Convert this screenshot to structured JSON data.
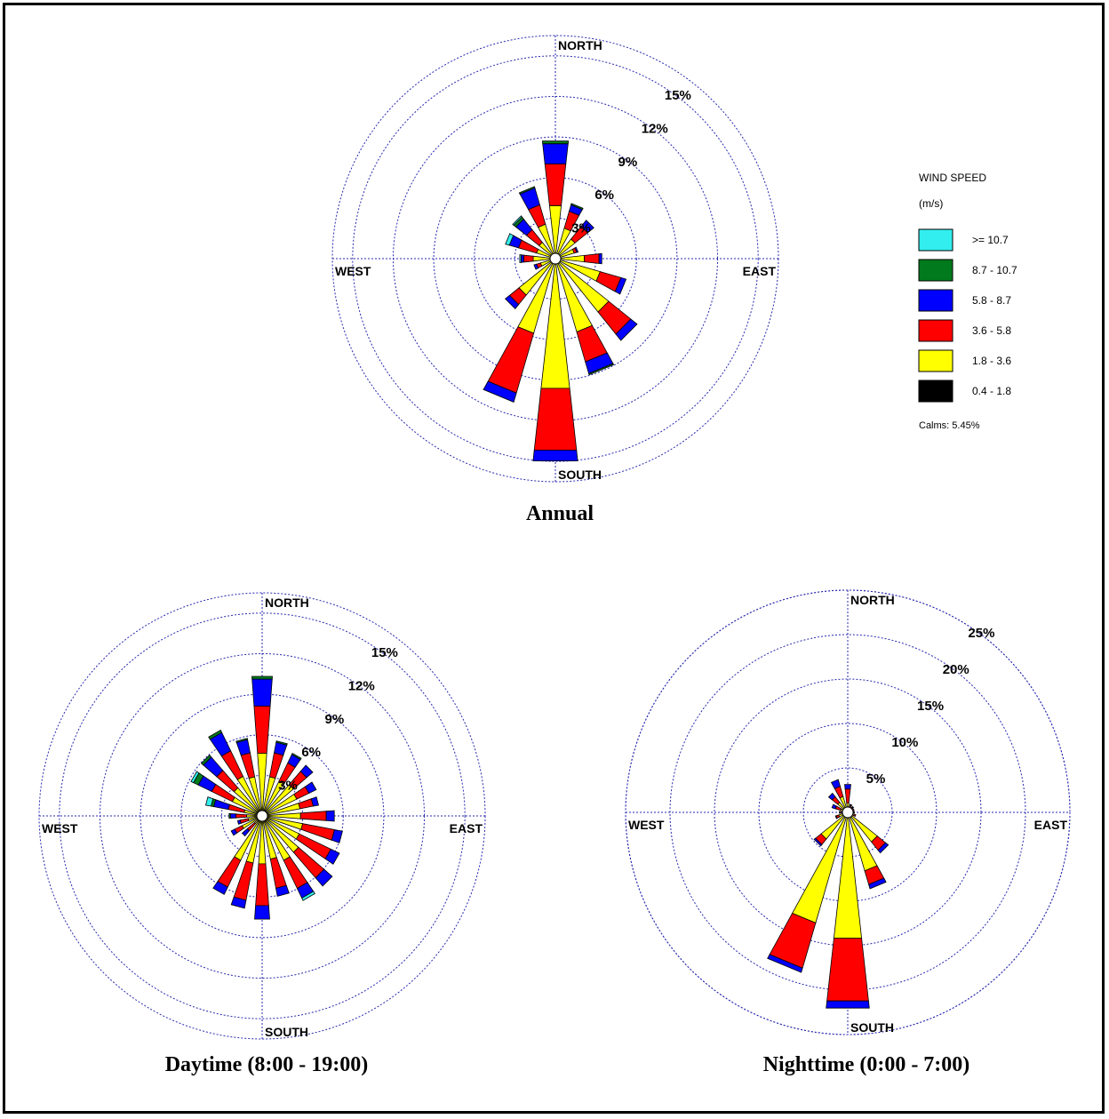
{
  "legend": {
    "title": "WIND SPEED",
    "unit": "(m/s)",
    "classes": [
      {
        "label": ">= 10.7",
        "color": "#33eeee"
      },
      {
        "label": "8.7 - 10.7",
        "color": "#007a1c"
      },
      {
        "label": "5.8 -  8.7",
        "color": "#0000ff"
      },
      {
        "label": "3.6 -  5.8",
        "color": "#ff0000"
      },
      {
        "label": "1.8 -  3.6",
        "color": "#ffff00"
      },
      {
        "label": "0.4 -  1.8",
        "color": "#000000"
      }
    ],
    "calms": "Calms: 5.45%"
  },
  "directions": {
    "north": "NORTH",
    "south": "SOUTH",
    "east": "EAST",
    "west": "WEST"
  },
  "chart_data": [
    {
      "type": "wind-rose",
      "title": "Annual",
      "ring_labels": [
        "3%",
        "6%",
        "9%",
        "12%",
        "15%"
      ],
      "ring_values": [
        3,
        6,
        9,
        12,
        15
      ],
      "outer_ring": 16.5,
      "sectors": 16,
      "speed_classes": [
        "0.4-1.8",
        "1.8-3.6",
        "3.6-5.8",
        "5.8-8.7",
        "8.7-10.7",
        ">=10.7"
      ],
      "bars": [
        {
          "dir": "N",
          "values": [
            0,
            3.7,
            3.1,
            1.5,
            0.2,
            0
          ]
        },
        {
          "dir": "NNE",
          "values": [
            0,
            2.1,
            1.3,
            0.5,
            0.1,
            0
          ]
        },
        {
          "dir": "NE",
          "values": [
            0,
            1.6,
            1.2,
            0.6,
            0,
            0
          ]
        },
        {
          "dir": "ENE",
          "values": [
            0,
            1.2,
            0.2,
            0.1,
            0,
            0
          ]
        },
        {
          "dir": "E",
          "values": [
            0,
            1.9,
            1.1,
            0.2,
            0,
            0
          ]
        },
        {
          "dir": "ESE",
          "values": [
            0,
            3.2,
            1.6,
            0.4,
            0,
            0
          ]
        },
        {
          "dir": "SE",
          "values": [
            0,
            4.8,
            2.1,
            0.6,
            0,
            0
          ]
        },
        {
          "dir": "SSE",
          "values": [
            0,
            5.4,
            2.3,
            0.9,
            0.1,
            0
          ]
        },
        {
          "dir": "S",
          "values": [
            0,
            9.4,
            4.6,
            0.8,
            0,
            0
          ]
        },
        {
          "dir": "SSW",
          "values": [
            0,
            5.5,
            4.6,
            0.7,
            0,
            0
          ]
        },
        {
          "dir": "SW",
          "values": [
            0,
            3.2,
            0.9,
            0.4,
            0,
            0
          ]
        },
        {
          "dir": "WSW",
          "values": [
            0,
            0.9,
            0.3,
            0.2,
            0,
            0
          ]
        },
        {
          "dir": "W",
          "values": [
            0,
            1.4,
            0.7,
            0.2,
            0,
            0.1
          ]
        },
        {
          "dir": "WNW",
          "values": [
            0,
            1.2,
            1.4,
            0.7,
            0,
            0.3
          ]
        },
        {
          "dir": "NW",
          "values": [
            0,
            1.3,
            1.2,
            1.0,
            0.2,
            0.1
          ]
        },
        {
          "dir": "NNW",
          "values": [
            0,
            2.4,
            1.5,
            1.3,
            0.1,
            0
          ]
        }
      ]
    },
    {
      "type": "wind-rose",
      "title": "Daytime (8:00 - 19:00)",
      "ring_labels": [
        "3%",
        "6%",
        "9%",
        "12%",
        "15%"
      ],
      "ring_values": [
        3,
        6,
        9,
        12,
        15
      ],
      "outer_ring": 16.5,
      "sectors": 24,
      "speed_classes": [
        "0.4-1.8",
        "1.8-3.6",
        "3.6-5.8",
        "5.8-8.7",
        "8.7-10.7",
        ">=10.7"
      ],
      "bars": [
        {
          "dir": "0",
          "values": [
            0,
            4.4,
            3.5,
            2.0,
            0.2,
            0
          ]
        },
        {
          "dir": "15",
          "values": [
            0,
            2.7,
            1.8,
            0.8,
            0.1,
            0
          ]
        },
        {
          "dir": "30",
          "values": [
            0,
            2.6,
            1.5,
            0.7,
            0.1,
            0
          ]
        },
        {
          "dir": "45",
          "values": [
            0,
            2.8,
            1.3,
            0.6,
            0,
            0
          ]
        },
        {
          "dir": "60",
          "values": [
            0,
            2.6,
            1.0,
            0.6,
            0,
            0
          ]
        },
        {
          "dir": "75",
          "values": [
            0,
            2.6,
            1.0,
            0.4,
            0,
            0
          ]
        },
        {
          "dir": "90",
          "values": [
            0,
            2.6,
            1.9,
            0.6,
            0,
            0
          ]
        },
        {
          "dir": "105",
          "values": [
            0,
            2.8,
            2.4,
            0.6,
            0,
            0
          ]
        },
        {
          "dir": "120",
          "values": [
            0,
            2.8,
            2.6,
            0.7,
            0,
            0
          ]
        },
        {
          "dir": "135",
          "values": [
            0,
            3.3,
            2.5,
            0.8,
            0,
            0
          ]
        },
        {
          "dir": "150",
          "values": [
            0,
            3.4,
            2.3,
            0.8,
            0,
            0.2
          ]
        },
        {
          "dir": "165",
          "values": [
            0,
            3.0,
            2.2,
            0.6,
            0,
            0
          ]
        },
        {
          "dir": "180",
          "values": [
            0,
            3.3,
            3.1,
            1.0,
            0,
            0
          ]
        },
        {
          "dir": "195",
          "values": [
            0,
            3.3,
            2.8,
            0.6,
            0,
            0
          ]
        },
        {
          "dir": "210",
          "values": [
            0,
            3.4,
            2.2,
            0.6,
            0,
            0
          ]
        },
        {
          "dir": "225",
          "values": [
            0,
            0.5,
            0.7,
            0.5,
            0,
            0
          ]
        },
        {
          "dir": "240",
          "values": [
            0,
            1.4,
            0.6,
            0.3,
            0,
            0
          ]
        },
        {
          "dir": "255",
          "values": [
            0,
            0.8,
            0.6,
            0.2,
            0,
            0
          ]
        },
        {
          "dir": "270",
          "values": [
            0,
            0.9,
            0.8,
            0.4,
            0.1,
            0
          ]
        },
        {
          "dir": "285",
          "values": [
            0,
            1.1,
            1.2,
            1.1,
            0.2,
            0.4
          ]
        },
        {
          "dir": "300",
          "values": [
            0,
            2.2,
            1.7,
            1.1,
            0.4,
            0.2
          ]
        },
        {
          "dir": "315",
          "values": [
            0,
            2.5,
            1.7,
            1.3,
            0.2,
            0
          ]
        },
        {
          "dir": "330",
          "values": [
            0,
            3.0,
            2.1,
            1.5,
            0.2,
            0
          ]
        },
        {
          "dir": "345",
          "values": [
            0,
            2.7,
            1.8,
            1.0,
            0.1,
            0
          ]
        }
      ]
    },
    {
      "type": "wind-rose",
      "title": "Nighttime (0:00 - 7:00)",
      "ring_labels": [
        "5%",
        "10%",
        "15%",
        "20%",
        "25%"
      ],
      "ring_values": [
        5,
        10,
        15,
        20,
        25
      ],
      "outer_ring": 25,
      "sectors": 16,
      "speed_classes": [
        "0.4-1.8",
        "1.8-3.6",
        "3.6-5.8",
        "5.8-8.7",
        "8.7-10.7",
        ">=10.7"
      ],
      "bars": [
        {
          "dir": "N",
          "values": [
            0,
            0.8,
            1.6,
            0.5,
            0,
            0
          ]
        },
        {
          "dir": "NNE",
          "values": [
            0,
            0.4,
            0.2,
            0.1,
            0,
            0
          ]
        },
        {
          "dir": "NE",
          "values": [
            0,
            0.3,
            0.2,
            0.1,
            0,
            0
          ]
        },
        {
          "dir": "ENE",
          "values": [
            0,
            0.4,
            0.1,
            0,
            0,
            0
          ]
        },
        {
          "dir": "E",
          "values": [
            0,
            0.4,
            0.1,
            0,
            0,
            0
          ]
        },
        {
          "dir": "ESE",
          "values": [
            0,
            0.5,
            0.2,
            0,
            0,
            0
          ]
        },
        {
          "dir": "SE",
          "values": [
            0,
            4.0,
            1.2,
            0.4,
            0,
            0
          ]
        },
        {
          "dir": "SSE",
          "values": [
            0,
            6.6,
            1.6,
            0.5,
            0,
            0
          ]
        },
        {
          "dir": "S",
          "values": [
            0,
            14.0,
            7.1,
            0.8,
            0,
            0
          ]
        },
        {
          "dir": "SSW",
          "values": [
            0,
            12.7,
            5.3,
            0.5,
            0,
            0
          ]
        },
        {
          "dir": "SW",
          "values": [
            0,
            3.6,
            0.8,
            0.2,
            0,
            0
          ]
        },
        {
          "dir": "WSW",
          "values": [
            0,
            0.8,
            0.3,
            0.1,
            0,
            0
          ]
        },
        {
          "dir": "W",
          "values": [
            0,
            0.4,
            0.2,
            0.1,
            0,
            0
          ]
        },
        {
          "dir": "WNW",
          "values": [
            0,
            0.6,
            0.6,
            0.4,
            0,
            0
          ]
        },
        {
          "dir": "NW",
          "values": [
            0,
            1.2,
            0.8,
            0.5,
            0,
            0
          ]
        },
        {
          "dir": "NNW",
          "values": [
            0,
            1.6,
            1.2,
            0.8,
            0,
            0
          ]
        }
      ]
    }
  ]
}
